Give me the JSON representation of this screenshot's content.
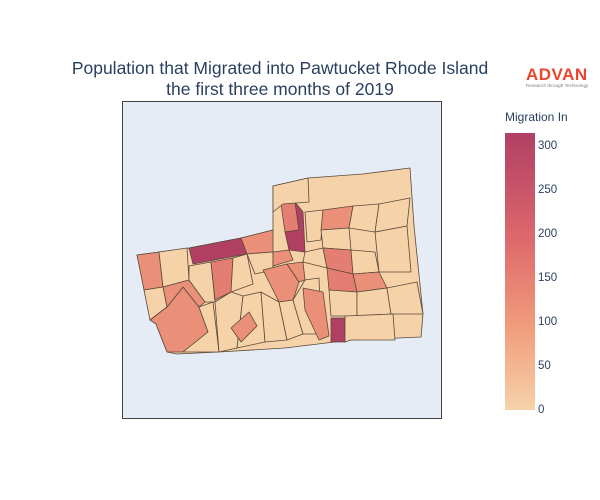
{
  "title": {
    "line1": "Population that Migrated into Pawtucket Rhode Island",
    "line2": "the first three months of 2019"
  },
  "logo": {
    "word": "ADVAN",
    "tagline": "Research through Technology",
    "color": "#e8472e"
  },
  "map": {
    "background": "#e5ecf6",
    "border_color": "#444444",
    "tract_outline_color": "#5a4a3a"
  },
  "colorbar": {
    "title": "Migration In",
    "min": 0,
    "max": 315,
    "ticks": [
      "0",
      "50",
      "100",
      "150",
      "200",
      "250",
      "300"
    ],
    "colorscale": [
      "#f6d2a9",
      "#f19c7c",
      "#dd686c",
      "#b13f64"
    ]
  }
}
